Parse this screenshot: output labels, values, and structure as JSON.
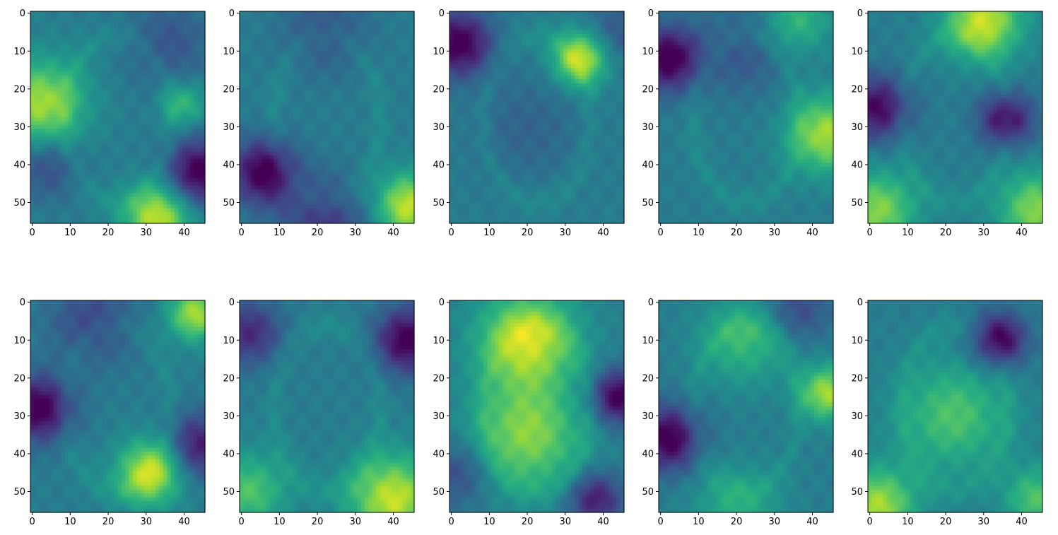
{
  "figure": {
    "rows": 2,
    "cols": 5,
    "colormap": "viridis",
    "background": "#ffffff"
  },
  "chart_data": [
    {
      "type": "heatmap",
      "xlim": [
        0,
        45
      ],
      "ylim": [
        55,
        0
      ],
      "xticks": [
        0,
        10,
        20,
        30,
        40
      ],
      "yticks": [
        0,
        10,
        20,
        30,
        40,
        50
      ],
      "grid": false,
      "blobs": [
        {
          "x": 2,
          "y": 24,
          "v": 0.9,
          "r": 8
        },
        {
          "x": 33,
          "y": 54,
          "v": 1,
          "r": 6
        },
        {
          "x": 44,
          "y": 42,
          "v": -0.9,
          "r": 6
        },
        {
          "x": 4,
          "y": 40,
          "v": -0.4,
          "r": 6
        },
        {
          "x": 36,
          "y": 8,
          "v": -0.3,
          "r": 8
        },
        {
          "x": 40,
          "y": 24,
          "v": 0.5,
          "r": 4
        }
      ]
    },
    {
      "type": "heatmap",
      "xlim": [
        0,
        45
      ],
      "ylim": [
        55,
        0
      ],
      "xticks": [
        0,
        10,
        20,
        30,
        40
      ],
      "yticks": [
        0,
        10,
        20,
        30,
        40,
        50
      ],
      "grid": false,
      "blobs": [
        {
          "x": 44,
          "y": 51,
          "v": 1,
          "r": 6
        },
        {
          "x": 6,
          "y": 42,
          "v": -0.9,
          "r": 6
        },
        {
          "x": 22,
          "y": 55,
          "v": -0.5,
          "r": 8
        },
        {
          "x": 22,
          "y": 5,
          "v": -0.3,
          "r": 8
        }
      ]
    },
    {
      "type": "heatmap",
      "xlim": [
        0,
        45
      ],
      "ylim": [
        55,
        0
      ],
      "xticks": [
        0,
        10,
        20,
        30,
        40
      ],
      "yticks": [
        0,
        10,
        20,
        30,
        40,
        50
      ],
      "grid": false,
      "blobs": [
        {
          "x": 34,
          "y": 12,
          "v": 1,
          "r": 5
        },
        {
          "x": 2,
          "y": 8,
          "v": -0.9,
          "r": 6
        },
        {
          "x": 44,
          "y": 5,
          "v": -0.3,
          "r": 6
        },
        {
          "x": 20,
          "y": 30,
          "v": -0.2,
          "r": 10
        }
      ]
    },
    {
      "type": "heatmap",
      "xlim": [
        0,
        45
      ],
      "ylim": [
        55,
        0
      ],
      "xticks": [
        0,
        10,
        20,
        30,
        40
      ],
      "yticks": [
        0,
        10,
        20,
        30,
        40,
        50
      ],
      "grid": false,
      "blobs": [
        {
          "x": 44,
          "y": 32,
          "v": 0.9,
          "r": 7
        },
        {
          "x": 2,
          "y": 12,
          "v": -0.9,
          "r": 6
        },
        {
          "x": 36,
          "y": 2,
          "v": 0.5,
          "r": 6
        },
        {
          "x": 22,
          "y": 10,
          "v": -0.3,
          "r": 8
        }
      ]
    },
    {
      "type": "heatmap",
      "xlim": [
        0,
        45
      ],
      "ylim": [
        55,
        0
      ],
      "xticks": [
        0,
        10,
        20,
        30,
        40
      ],
      "yticks": [
        0,
        10,
        20,
        30,
        40,
        50
      ],
      "grid": false,
      "blobs": [
        {
          "x": 30,
          "y": 2,
          "v": 1,
          "r": 7
        },
        {
          "x": 2,
          "y": 52,
          "v": 0.8,
          "r": 7
        },
        {
          "x": 44,
          "y": 52,
          "v": 0.8,
          "r": 7
        },
        {
          "x": 2,
          "y": 25,
          "v": -0.8,
          "r": 6
        },
        {
          "x": 36,
          "y": 28,
          "v": -0.8,
          "r": 5
        }
      ]
    },
    {
      "type": "heatmap",
      "xlim": [
        0,
        45
      ],
      "ylim": [
        55,
        0
      ],
      "xticks": [
        0,
        10,
        20,
        30,
        40
      ],
      "yticks": [
        0,
        10,
        20,
        30,
        40,
        50
      ],
      "grid": false,
      "blobs": [
        {
          "x": 31,
          "y": 45,
          "v": 1,
          "r": 6
        },
        {
          "x": 43,
          "y": 3,
          "v": 0.9,
          "r": 5
        },
        {
          "x": 2,
          "y": 28,
          "v": -0.9,
          "r": 6
        },
        {
          "x": 44,
          "y": 38,
          "v": -0.7,
          "r": 6
        },
        {
          "x": 16,
          "y": 5,
          "v": -0.4,
          "r": 8
        }
      ]
    },
    {
      "type": "heatmap",
      "xlim": [
        0,
        45
      ],
      "ylim": [
        55,
        0
      ],
      "xticks": [
        0,
        10,
        20,
        30,
        40
      ],
      "yticks": [
        0,
        10,
        20,
        30,
        40,
        50
      ],
      "grid": false,
      "blobs": [
        {
          "x": 40,
          "y": 52,
          "v": 1,
          "r": 8
        },
        {
          "x": 2,
          "y": 50,
          "v": 0.6,
          "r": 7
        },
        {
          "x": 44,
          "y": 10,
          "v": -0.9,
          "r": 6
        },
        {
          "x": 2,
          "y": 8,
          "v": -0.6,
          "r": 6
        }
      ]
    },
    {
      "type": "heatmap",
      "xlim": [
        0,
        45
      ],
      "ylim": [
        55,
        0
      ],
      "xticks": [
        0,
        10,
        20,
        30,
        40
      ],
      "yticks": [
        0,
        10,
        20,
        30,
        40,
        50
      ],
      "grid": false,
      "blobs": [
        {
          "x": 20,
          "y": 10,
          "v": 1,
          "r": 9
        },
        {
          "x": 20,
          "y": 35,
          "v": 0.8,
          "r": 10
        },
        {
          "x": 44,
          "y": 25,
          "v": -0.9,
          "r": 5
        },
        {
          "x": 38,
          "y": 52,
          "v": -0.7,
          "r": 5
        },
        {
          "x": 2,
          "y": 45,
          "v": -0.4,
          "r": 6
        }
      ]
    },
    {
      "type": "heatmap",
      "xlim": [
        0,
        45
      ],
      "ylim": [
        55,
        0
      ],
      "xticks": [
        0,
        10,
        20,
        30,
        40
      ],
      "yticks": [
        0,
        10,
        20,
        30,
        40,
        50
      ],
      "grid": false,
      "blobs": [
        {
          "x": 44,
          "y": 24,
          "v": 0.9,
          "r": 5
        },
        {
          "x": 2,
          "y": 36,
          "v": -0.9,
          "r": 6
        },
        {
          "x": 22,
          "y": 10,
          "v": 0.5,
          "r": 8
        },
        {
          "x": 36,
          "y": 2,
          "v": -0.4,
          "r": 6
        },
        {
          "x": 20,
          "y": 55,
          "v": 0.4,
          "r": 8
        }
      ]
    },
    {
      "type": "heatmap",
      "xlim": [
        0,
        45
      ],
      "ylim": [
        55,
        0
      ],
      "xticks": [
        0,
        10,
        20,
        30,
        40
      ],
      "yticks": [
        0,
        10,
        20,
        30,
        40,
        50
      ],
      "grid": false,
      "blobs": [
        {
          "x": 2,
          "y": 54,
          "v": 0.9,
          "r": 7
        },
        {
          "x": 34,
          "y": 10,
          "v": -0.9,
          "r": 5
        },
        {
          "x": 22,
          "y": 30,
          "v": 0.6,
          "r": 10
        },
        {
          "x": 44,
          "y": 52,
          "v": 0.6,
          "r": 6
        }
      ]
    }
  ]
}
